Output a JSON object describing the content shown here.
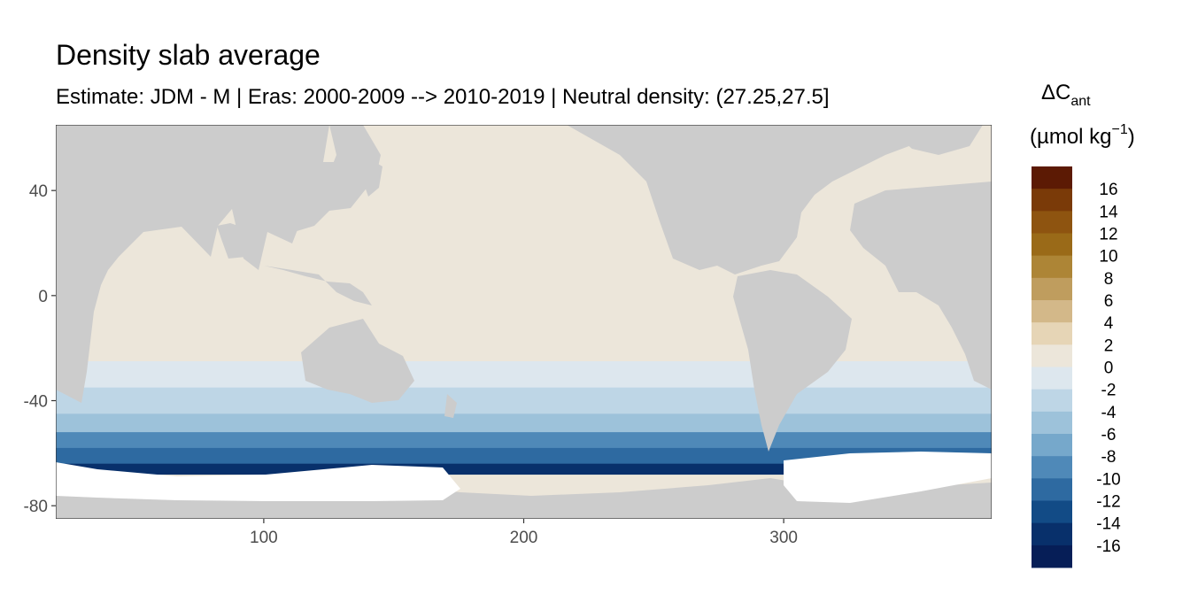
{
  "chart_data": {
    "type": "heatmap",
    "title": "Density slab average",
    "subtitle": "Estimate: JDM - M | Eras: 2000-2009 --> 2010-2019 | Neutral density: (27.25,27.5]",
    "xlim": [
      20,
      380
    ],
    "ylim": [
      -85,
      65
    ],
    "x_ticks": [
      100,
      200,
      300
    ],
    "y_ticks": [
      40,
      0,
      -40,
      -80
    ],
    "grid": false,
    "legend_position": "right",
    "legend": {
      "title_main": "ΔC",
      "title_sub": "ant",
      "units_prefix": "(µmol kg",
      "units_sup": "−1",
      "units_suffix": ")",
      "labels": [
        "16",
        "14",
        "12",
        "10",
        "8",
        "6",
        "4",
        "2",
        "0",
        "-2",
        "-4",
        "-6",
        "-8",
        "-10",
        "-12",
        "-14",
        "-16"
      ],
      "colors": [
        "#5c1a04",
        "#7a3a08",
        "#8e5410",
        "#9a6a18",
        "#ad8536",
        "#bf9d5e",
        "#d3b889",
        "#e6d5b6",
        "#ece6da",
        "#dde7ee",
        "#bed6e6",
        "#9dc2da",
        "#76a8cb",
        "#4f89b8",
        "#2e6aa1",
        "#124b86",
        "#08306b",
        "#061e57"
      ]
    },
    "land_color": "#cccccc",
    "nodata_color": "#ffffff",
    "bands": [
      {
        "lat_from": 65,
        "lat_to": 20,
        "value": 0.5
      },
      {
        "lat_from": 20,
        "lat_to": -10,
        "value": 1
      },
      {
        "lat_from": -10,
        "lat_to": -25,
        "value": 0.5
      },
      {
        "lat_from": -25,
        "lat_to": -35,
        "value": -1
      },
      {
        "lat_from": -35,
        "lat_to": -45,
        "value": -3
      },
      {
        "lat_from": -45,
        "lat_to": -52,
        "value": -6
      },
      {
        "lat_from": -52,
        "lat_to": -58,
        "value": -9
      },
      {
        "lat_from": -58,
        "lat_to": -64,
        "value": -12
      },
      {
        "lat_from": -64,
        "lat_to": -68,
        "value": -15
      }
    ]
  }
}
